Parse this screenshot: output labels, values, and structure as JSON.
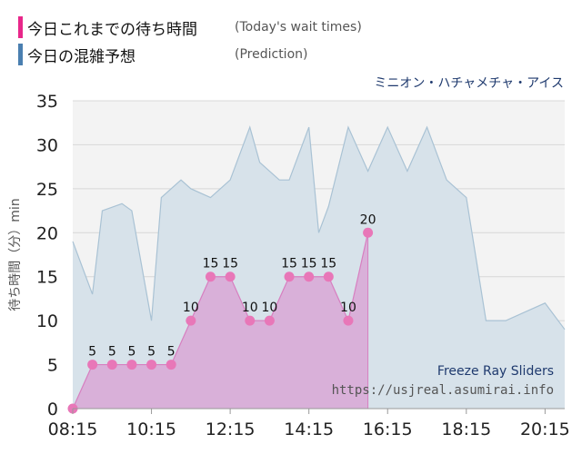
{
  "legend": [
    {
      "label": "今日これまでの待ち時間",
      "sublabel": "(Today's wait times)",
      "color": "#e8278a"
    },
    {
      "label": "今日の混雑予想",
      "sublabel": "(Prediction)",
      "color": "#4a7fb0"
    }
  ],
  "attraction_name": "ミニオン・ハチャメチャ・アイス",
  "ride_name": "Freeze Ray Sliders",
  "site_url": "https://usjreal.asumirai.info",
  "colors": {
    "actual_fill": "#d9b0d9",
    "actual_line": "#d77fc0",
    "actual_point": "#e877b8",
    "predict_fill": "#d7e2ea",
    "predict_line": "#a9c2d4",
    "plot_bg": "#f3f3f3",
    "grid": "#d8d8d8"
  },
  "chart_data": {
    "type": "area",
    "ylabel": "待ち時間（分）min",
    "ylim": [
      0,
      35
    ],
    "yticks": [
      0,
      5,
      10,
      15,
      20,
      25,
      30,
      35
    ],
    "xlim": [
      "08:15",
      "20:45"
    ],
    "xticks": [
      "08:15",
      "10:15",
      "12:15",
      "14:15",
      "16:15",
      "18:15",
      "20:15"
    ],
    "grid": true,
    "series": [
      {
        "type": "area",
        "times": [
          "08:15",
          "08:45",
          "09:00",
          "09:30",
          "09:45",
          "10:15",
          "10:30",
          "11:00",
          "11:15",
          "11:45",
          "12:15",
          "12:45",
          "13:00",
          "13:30",
          "13:45",
          "14:15",
          "14:30",
          "14:45",
          "15:15",
          "15:45",
          "16:15",
          "16:45",
          "17:15",
          "17:45",
          "18:15",
          "18:45",
          "19:15",
          "19:45",
          "20:15",
          "20:45"
        ],
        "values": [
          19,
          13,
          22.5,
          23.3,
          22.5,
          10,
          24,
          26,
          25,
          24,
          26,
          32,
          28,
          26,
          26,
          32,
          20,
          23,
          32,
          27,
          32,
          27,
          32,
          26,
          24,
          10,
          10,
          11,
          12,
          9
        ]
      },
      {
        "type": "area",
        "times": [
          "08:15",
          "08:45",
          "09:15",
          "09:45",
          "10:15",
          "10:45",
          "11:15",
          "11:45",
          "12:15",
          "12:45",
          "13:15",
          "13:45",
          "14:15",
          "14:45",
          "15:15",
          "15:45"
        ],
        "values": [
          0,
          5,
          5,
          5,
          5,
          5,
          10,
          15,
          15,
          10,
          10,
          15,
          15,
          15,
          10,
          20
        ],
        "data_labels": [
          "",
          "5",
          "5",
          "5",
          "5",
          "5",
          "10",
          "15",
          "15",
          "10",
          "10",
          "15",
          "15",
          "15",
          "10",
          "20"
        ]
      }
    ]
  }
}
